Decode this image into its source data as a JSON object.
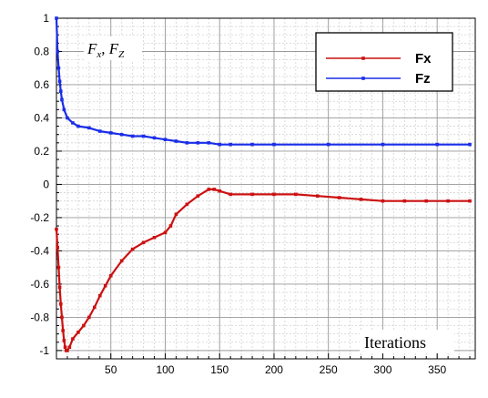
{
  "chart_data": {
    "type": "line",
    "ylabel_main": "F",
    "ylabel_sub1": "x",
    "ylabel_sep": ", ",
    "ylabel_main2": "F",
    "ylabel_sub2": "Z",
    "xlabel": "Iterations",
    "xlim": [
      0,
      385
    ],
    "ylim": [
      -1.05,
      1.0
    ],
    "xticks": [
      50,
      100,
      150,
      200,
      250,
      300,
      350
    ],
    "yticks": [
      1,
      0.8,
      0.6,
      0.4,
      0.2,
      0,
      -0.2,
      -0.4,
      -0.6,
      -0.8,
      -1
    ],
    "ytick_labels": [
      "1",
      "0.8",
      "0.6",
      "0.4",
      "0.2",
      "0",
      "-0.2",
      "-0.4",
      "-0.6",
      "-0.8",
      "-1"
    ],
    "grid": true,
    "legend_position": "top-right",
    "series": [
      {
        "name": "Fx",
        "color": "#cc1111",
        "x": [
          0,
          1,
          2,
          3,
          4,
          5,
          6,
          7,
          8,
          9,
          10,
          12,
          15,
          20,
          25,
          30,
          35,
          40,
          45,
          50,
          60,
          70,
          80,
          90,
          100,
          105,
          110,
          120,
          130,
          140,
          145,
          150,
          160,
          180,
          200,
          220,
          240,
          260,
          280,
          300,
          320,
          340,
          360,
          380
        ],
        "y": [
          -0.27,
          -0.38,
          -0.5,
          -0.62,
          -0.72,
          -0.8,
          -0.88,
          -0.94,
          -0.98,
          -1.0,
          -1.0,
          -0.98,
          -0.93,
          -0.89,
          -0.85,
          -0.8,
          -0.74,
          -0.67,
          -0.61,
          -0.55,
          -0.46,
          -0.39,
          -0.35,
          -0.32,
          -0.29,
          -0.25,
          -0.18,
          -0.12,
          -0.07,
          -0.03,
          -0.03,
          -0.04,
          -0.06,
          -0.06,
          -0.06,
          -0.06,
          -0.07,
          -0.08,
          -0.09,
          -0.1,
          -0.1,
          -0.1,
          -0.1,
          -0.1
        ]
      },
      {
        "name": "Fz",
        "color": "#1a2ee8",
        "x": [
          0,
          1,
          2,
          3,
          4,
          5,
          7,
          10,
          15,
          20,
          30,
          40,
          50,
          60,
          70,
          80,
          90,
          100,
          110,
          120,
          130,
          140,
          150,
          160,
          180,
          200,
          250,
          300,
          350,
          380
        ],
        "y": [
          1.0,
          0.8,
          0.7,
          0.62,
          0.56,
          0.51,
          0.45,
          0.4,
          0.37,
          0.35,
          0.34,
          0.32,
          0.31,
          0.3,
          0.29,
          0.29,
          0.28,
          0.27,
          0.26,
          0.25,
          0.25,
          0.25,
          0.24,
          0.24,
          0.24,
          0.24,
          0.24,
          0.24,
          0.24,
          0.24
        ]
      }
    ]
  }
}
